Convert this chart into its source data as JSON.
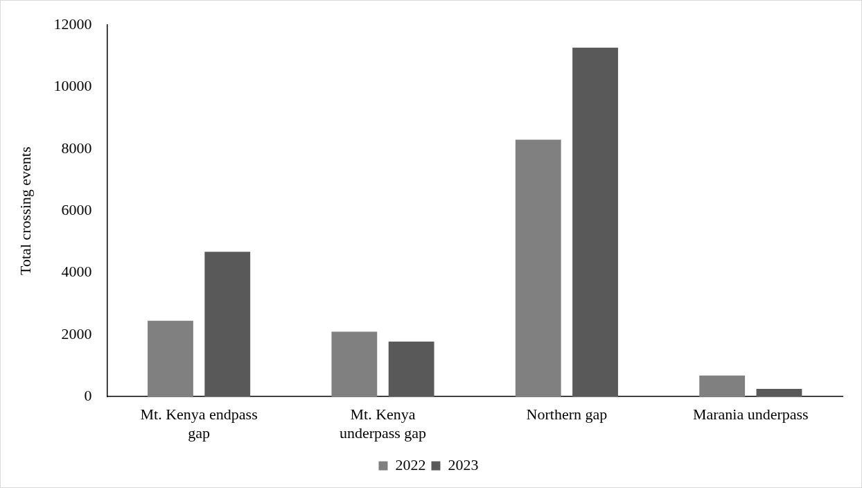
{
  "chart_data": {
    "type": "bar",
    "ylabel": "Total crossing events",
    "categories": [
      "Mt. Kenya endpass gap",
      "Mt. Kenya underpass gap",
      "Northern gap",
      "Marania underpass"
    ],
    "series": [
      {
        "name": "2022",
        "color": "#808080",
        "values": [
          2450,
          2100,
          8300,
          680
        ]
      },
      {
        "name": "2023",
        "color": "#595959",
        "values": [
          4680,
          1780,
          11270,
          250
        ]
      }
    ],
    "ylim": [
      0,
      12000
    ],
    "yticks": [
      0,
      2000,
      4000,
      6000,
      8000,
      10000,
      12000
    ],
    "grid": false,
    "legend": "bottom"
  }
}
